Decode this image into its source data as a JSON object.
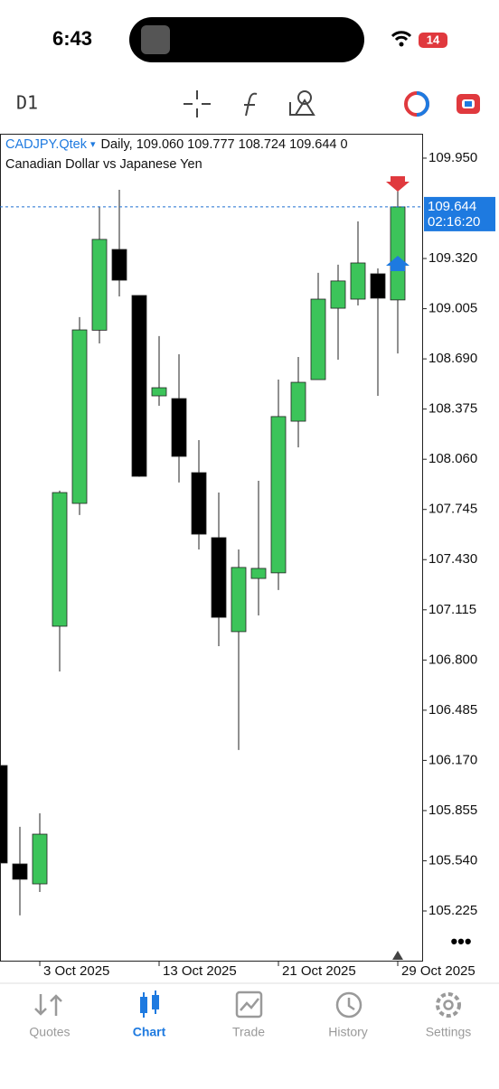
{
  "status_bar": {
    "time": "6:43",
    "battery": "14"
  },
  "toolbar": {
    "timeframe": "D1"
  },
  "chart_data": {
    "type": "candlestick",
    "symbol": "CADJPY.Qtek",
    "symbol_menu": "▾",
    "info": "Daily, 109.060 109.777 108.724 109.644 0",
    "subtitle": "Canadian Dollar vs Japanese Yen",
    "categories": [
      null,
      null,
      "3 Oct 2025",
      null,
      null,
      null,
      null,
      null,
      "13 Oct 2025",
      null,
      null,
      null,
      null,
      null,
      "21 Oct 2025",
      null,
      null,
      null,
      null,
      null,
      "29 Oct 2025"
    ],
    "open": [
      106.138,
      105.52,
      105.395,
      107.012,
      107.783,
      108.87,
      109.377,
      109.088,
      108.458,
      108.441,
      107.976,
      107.568,
      106.978,
      107.312,
      107.347,
      108.299,
      108.56,
      109.008,
      109.065,
      109.224,
      109.06
    ],
    "high": [
      106.2,
      105.753,
      105.838,
      107.863,
      108.952,
      109.644,
      109.751,
      109.09,
      108.833,
      108.719,
      108.18,
      107.851,
      107.494,
      107.925,
      108.56,
      108.702,
      109.23,
      109.281,
      109.553,
      109.258,
      109.777
    ],
    "low": [
      105.45,
      105.197,
      105.344,
      106.728,
      107.71,
      108.787,
      109.082,
      107.95,
      108.396,
      107.914,
      107.494,
      106.887,
      106.235,
      107.08,
      107.239,
      108.135,
      108.56,
      108.685,
      109.025,
      108.458,
      108.724
    ],
    "close": [
      105.526,
      105.424,
      105.707,
      107.851,
      108.872,
      109.44,
      109.184,
      107.953,
      108.509,
      108.078,
      107.59,
      107.068,
      107.381,
      107.375,
      108.328,
      108.543,
      109.065,
      109.179,
      109.292,
      109.071,
      109.644
    ],
    "up_color": "#3cc45a",
    "down_color": "#000000",
    "ylim": [
      104.913,
      110.103
    ],
    "yticks": [
      {
        "value": 109.95,
        "label": "109.950"
      },
      {
        "value": 109.32,
        "label": "109.320"
      },
      109.005,
      {
        "value": 108.69,
        "label": "108.690"
      },
      108.375,
      {
        "value": 108.06,
        "label": "108.060"
      },
      107.745,
      {
        "value": 107.43,
        "label": "107.430"
      },
      107.115,
      {
        "value": 106.8,
        "label": "106.800"
      },
      106.485,
      {
        "value": 106.17,
        "label": "106.170"
      },
      105.855,
      {
        "value": 105.54,
        "label": "105.540"
      },
      105.225
    ],
    "last_price": {
      "value": 109.644,
      "label": "109.644"
    },
    "countdown": "02:16:20"
  },
  "tabs": [
    "Quotes",
    "Chart",
    "Trade",
    "History",
    "Settings"
  ]
}
